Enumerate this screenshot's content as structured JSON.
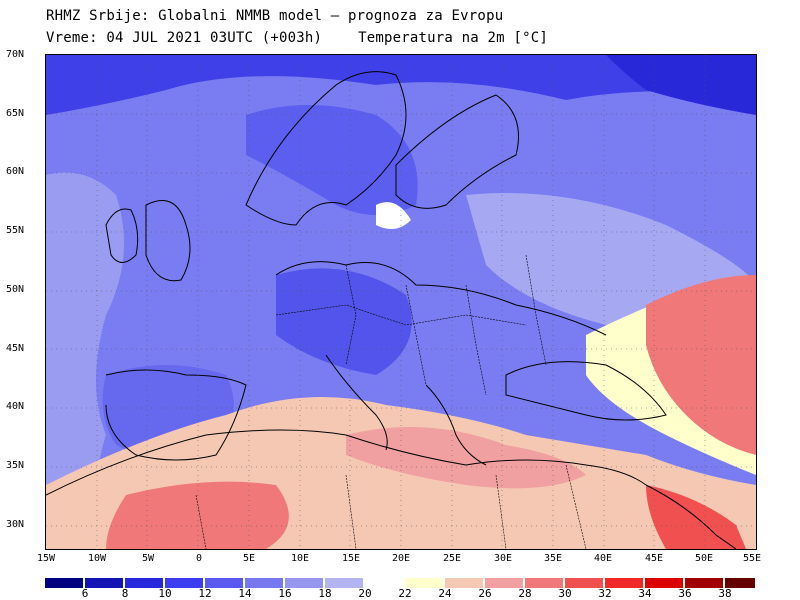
{
  "header": {
    "line1": "RHMZ Srbije: Globalni NMMB model — prognoza za Evropu",
    "run": "Vreme: 04 JUL 2021 03UTC (+003h)",
    "parameter": "Temperatura na 2m [°C]"
  },
  "map": {
    "lat_labels": [
      "70N",
      "65N",
      "60N",
      "55N",
      "50N",
      "45N",
      "40N",
      "35N",
      "30N"
    ],
    "lon_labels": [
      "15W",
      "10W",
      "5W",
      "0",
      "5E",
      "10E",
      "15E",
      "20E",
      "25E",
      "30E",
      "35E",
      "40E",
      "45E",
      "50E",
      "55E"
    ]
  },
  "colorbar": {
    "labels": [
      "6",
      "8",
      "10",
      "12",
      "14",
      "16",
      "18",
      "20",
      "22",
      "24",
      "26",
      "28",
      "30",
      "32",
      "34",
      "36",
      "38"
    ],
    "colors": [
      "#000080",
      "#1414b4",
      "#2828dc",
      "#3c3cf0",
      "#5a5af0",
      "#7878f0",
      "#9696f0",
      "#b4b4f0",
      "#ffffff",
      "#ffffcc",
      "#f5c8b4",
      "#f0a0a0",
      "#f07878",
      "#f05050",
      "#f02828",
      "#dc0000",
      "#a00000",
      "#640000"
    ]
  }
}
